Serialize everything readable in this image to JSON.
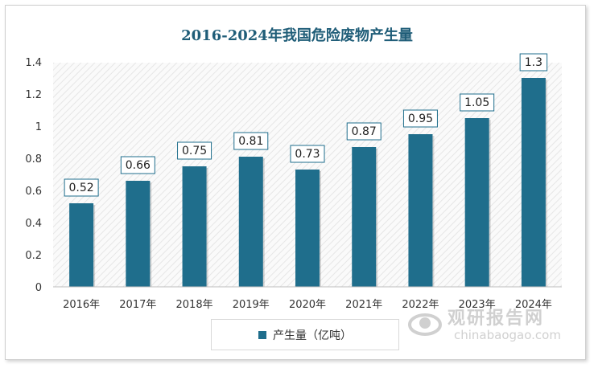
{
  "chart_data": {
    "type": "bar",
    "title": "2016-2024年我国危险废物产生量",
    "categories": [
      "2016年",
      "2017年",
      "2018年",
      "2019年",
      "2020年",
      "2021年",
      "2022年",
      "2023年",
      "2024年"
    ],
    "series": [
      {
        "name": "产生量（亿吨）",
        "values": [
          0.52,
          0.66,
          0.75,
          0.81,
          0.73,
          0.87,
          0.95,
          1.05,
          1.3
        ]
      }
    ],
    "data_labels": [
      "0.52",
      "0.66",
      "0.75",
      "0.81",
      "0.73",
      "0.87",
      "0.95",
      "1.05",
      "1.3"
    ],
    "y_ticks": [
      "0",
      "0.2",
      "0.4",
      "0.6",
      "0.8",
      "1",
      "1.2",
      "1.4"
    ],
    "ylim": [
      0,
      1.4
    ],
    "grid": false,
    "legend_position": "bottom",
    "colors": {
      "bar": "#1f6e8c",
      "title": "#1f5d78",
      "label_border": "#1f6e8c"
    }
  },
  "watermark": {
    "cn": "观研报告网",
    "en": "chinabaogao.com",
    "icon": "globe-logo-icon"
  }
}
